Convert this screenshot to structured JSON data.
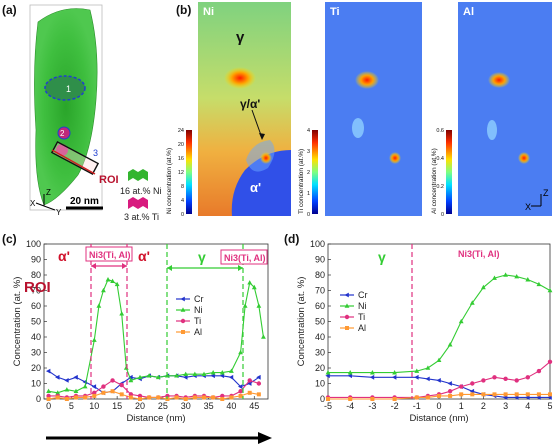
{
  "panel_labels": {
    "a": "(a)",
    "b": "(b)",
    "c": "(c)",
    "d": "(d)"
  },
  "panel_a": {
    "roi_label": "ROI",
    "scale_bar": "20 nm",
    "legend": [
      {
        "text": "16 at.% Ni",
        "color": "#33b52f"
      },
      {
        "text": "3 at.% Ti",
        "color": "#d81b7f"
      }
    ],
    "region_labels": [
      "1",
      "2",
      "3"
    ],
    "axes": [
      "X",
      "Y",
      "Z"
    ]
  },
  "panel_b": {
    "maps": [
      {
        "element": "Ni",
        "colorbar_label": "Ni concentration (at.%)",
        "ticks": [
          "0",
          "4",
          "8",
          "12",
          "16",
          "20",
          "24"
        ]
      },
      {
        "element": "Ti",
        "colorbar_label": "Ti concentration (at.%)",
        "ticks": [
          "0",
          "1",
          "2",
          "3",
          "4"
        ]
      },
      {
        "element": "Al",
        "colorbar_label": "Al concentration (at.%)",
        "ticks": [
          "0",
          "0.2",
          "0.4",
          "0.6"
        ]
      }
    ],
    "phase_labels": [
      "γ",
      "γ/α'",
      "α'"
    ],
    "axes": [
      "X",
      "Z"
    ]
  },
  "chart_data": [
    {
      "type": "line",
      "panel": "(c)",
      "xlabel": "Distance (nm)",
      "ylabel": "Concentration (at. %)",
      "xlim": [
        -1,
        48
      ],
      "ylim": [
        0,
        100
      ],
      "xticks": [
        "0",
        "5",
        "10",
        "15",
        "20",
        "25",
        "30",
        "35",
        "40",
        "45"
      ],
      "yticks": [
        "0",
        "10",
        "20",
        "30",
        "40",
        "50",
        "60",
        "70",
        "80",
        "90",
        "100"
      ],
      "legend": [
        "Cr",
        "Ni",
        "Ti",
        "Al"
      ],
      "legend_position": "center-right",
      "annotations": [
        "α'",
        "Ni3(Ti, Al)",
        "α'",
        "γ",
        "Ni3(Ti, Al)",
        "ROI"
      ],
      "grid": false,
      "series": [
        {
          "name": "Cr",
          "color": "#2233cc",
          "x": [
            0,
            2,
            4,
            6,
            8,
            10,
            12,
            14,
            16,
            18,
            20,
            22,
            24,
            26,
            28,
            30,
            32,
            34,
            36,
            38,
            40,
            42,
            44,
            46
          ],
          "values": [
            18,
            14,
            12,
            14,
            11,
            8,
            4,
            5,
            10,
            14,
            13,
            15,
            14,
            15,
            15,
            14,
            15,
            15,
            15,
            15,
            14,
            8,
            10,
            14
          ]
        },
        {
          "name": "Ni",
          "color": "#33cc33",
          "x": [
            0,
            2,
            4,
            6,
            8,
            10,
            11,
            12,
            13,
            14,
            15,
            16,
            17,
            18,
            20,
            22,
            24,
            26,
            28,
            30,
            32,
            34,
            36,
            38,
            40,
            42,
            43,
            44,
            45,
            46,
            47
          ],
          "values": [
            5,
            4,
            6,
            5,
            8,
            38,
            60,
            70,
            77,
            76,
            74,
            55,
            20,
            12,
            14,
            15,
            14,
            15,
            15,
            16,
            16,
            16,
            17,
            17,
            18,
            30,
            60,
            75,
            72,
            60,
            40
          ]
        },
        {
          "name": "Ti",
          "color": "#e0307f",
          "x": [
            0,
            2,
            4,
            6,
            8,
            10,
            12,
            14,
            16,
            18,
            20,
            22,
            24,
            26,
            28,
            30,
            32,
            34,
            36,
            38,
            40,
            42,
            44,
            46
          ],
          "values": [
            2,
            2,
            1,
            2,
            2,
            4,
            8,
            12,
            9,
            3,
            2,
            1,
            1,
            2,
            2,
            1,
            2,
            2,
            1,
            2,
            2,
            5,
            12,
            10
          ]
        },
        {
          "name": "Al",
          "color": "#ff9933",
          "x": [
            0,
            2,
            4,
            6,
            8,
            10,
            12,
            14,
            16,
            18,
            20,
            22,
            24,
            26,
            28,
            30,
            32,
            34,
            36,
            38,
            40,
            42,
            44,
            46
          ],
          "values": [
            0,
            1,
            0,
            1,
            1,
            2,
            4,
            5,
            3,
            1,
            0,
            1,
            1,
            0,
            1,
            0,
            1,
            1,
            1,
            0,
            1,
            2,
            4,
            3
          ]
        }
      ]
    },
    {
      "type": "line",
      "panel": "(d)",
      "xlabel": "Distance (nm)",
      "ylabel": "Concentration (at. %)",
      "xlim": [
        -5,
        5
      ],
      "ylim": [
        0,
        100
      ],
      "xticks": [
        "-5",
        "-4",
        "-3",
        "-2",
        "-1",
        "0",
        "1",
        "2",
        "3",
        "4",
        "5"
      ],
      "yticks": [
        "0",
        "10",
        "20",
        "30",
        "40",
        "50",
        "60",
        "70",
        "80",
        "90",
        "100"
      ],
      "legend": [
        "Cr",
        "Ni",
        "Ti",
        "Al"
      ],
      "legend_position": "top-left",
      "annotations": [
        "γ",
        "Ni3(Ti, Al)"
      ],
      "grid": false,
      "series": [
        {
          "name": "Cr",
          "color": "#2233cc",
          "x": [
            -5,
            -4,
            -3,
            -2,
            -1,
            -0.5,
            0,
            0.5,
            1,
            1.5,
            2,
            2.5,
            3,
            3.5,
            4,
            4.5,
            5
          ],
          "values": [
            15,
            15,
            14,
            14,
            14,
            13,
            12,
            10,
            8,
            5,
            3,
            2,
            1,
            1,
            1,
            1,
            1
          ]
        },
        {
          "name": "Ni",
          "color": "#33cc33",
          "x": [
            -5,
            -4,
            -3,
            -2,
            -1,
            -0.5,
            0,
            0.5,
            1,
            1.5,
            2,
            2.5,
            3,
            3.5,
            4,
            4.5,
            5
          ],
          "values": [
            17,
            17,
            17,
            17,
            18,
            20,
            25,
            35,
            50,
            62,
            72,
            78,
            80,
            79,
            77,
            74,
            70
          ]
        },
        {
          "name": "Ti",
          "color": "#e0307f",
          "x": [
            -5,
            -4,
            -3,
            -2,
            -1,
            -0.5,
            0,
            0.5,
            1,
            1.5,
            2,
            2.5,
            3,
            3.5,
            4,
            4.5,
            5
          ],
          "values": [
            1,
            1,
            1,
            1,
            1,
            2,
            3,
            5,
            8,
            10,
            12,
            14,
            13,
            12,
            14,
            18,
            24
          ]
        },
        {
          "name": "Al",
          "color": "#ff9933",
          "x": [
            -5,
            -4,
            -3,
            -2,
            -1,
            -0.5,
            0,
            0.5,
            1,
            1.5,
            2,
            2.5,
            3,
            3.5,
            4,
            4.5,
            5
          ],
          "values": [
            0,
            0,
            0,
            0,
            1,
            1,
            2,
            2,
            3,
            3,
            3,
            3,
            3,
            3,
            3,
            3,
            3
          ]
        }
      ]
    }
  ]
}
